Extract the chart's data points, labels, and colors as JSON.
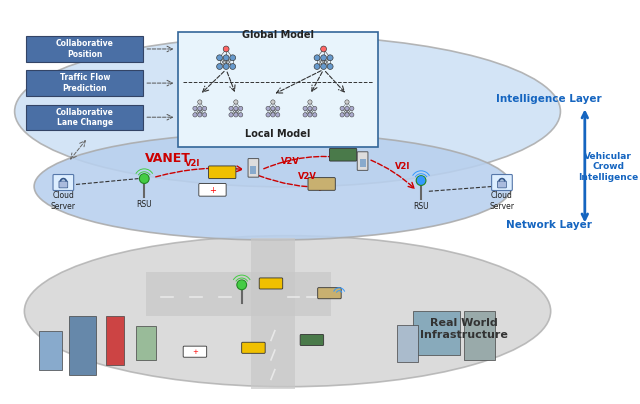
{
  "layers": {
    "intelligence": {
      "label": "Intelligence Layer",
      "sublabel": "Vehicular\nCrowd\nIntelligence",
      "network_label": "Network Layer",
      "ellipse_color": "#cce0f5",
      "ellipse_edge": "#aaaaaa"
    },
    "network": {
      "label": "VANET",
      "network_label": "Network Layer",
      "ellipse_color": "#b8d0ee",
      "ellipse_edge": "#aaaaaa"
    },
    "physical": {
      "label": "Real World\nInfrastructure",
      "ellipse_color": "#d0d0d0",
      "ellipse_edge": "#aaaaaa"
    }
  },
  "tasks": [
    "Collaborative\nPosition",
    "Traffic Flow\nPrediction",
    "Collaborative\nLane Change"
  ],
  "labels": {
    "global_model": "Global Model",
    "local_model": "Local Model",
    "cloud_server_left": "Cloud\nServer",
    "cloud_server_right": "Cloud\nServer",
    "rsu_left": "RSU",
    "rsu_right": "RSU",
    "vanet": "VANET",
    "v2i_left": "V2I",
    "v2i_right": "V2I",
    "v2v_top": "V2V",
    "v2v_bot": "V2V"
  },
  "colors": {
    "blue_text": "#1565C0",
    "red_dashed": "#cc0000",
    "black_dashed": "#333333",
    "node_fill": "#ffffff",
    "node_edge_blue": "#3399ff",
    "node_edge_red": "#ff3333",
    "node_edge_dark": "#333333",
    "arrow_blue": "#1565C0",
    "task_box_bg": "#4a6fa5",
    "task_box_text": "#ffffff",
    "model_box_bg": "#e8f4fc",
    "model_box_edge": "#336699"
  }
}
